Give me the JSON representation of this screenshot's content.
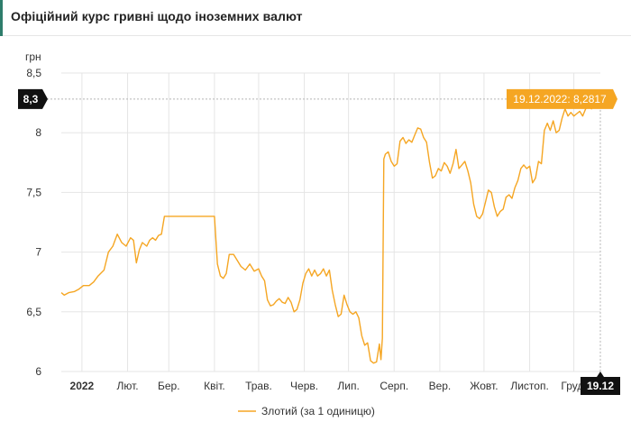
{
  "header": {
    "title": "Офіційний курс гривні щодо іноземних валют"
  },
  "chart_data": {
    "type": "line",
    "ylabel": "грн",
    "ylim": [
      6,
      8.5
    ],
    "y_ticks": [
      "8,5",
      "8",
      "7,5",
      "7",
      "6,5",
      "6"
    ],
    "y_tick_values": [
      8.5,
      8,
      7.5,
      7,
      6.5,
      6
    ],
    "x_ticks": [
      "2022",
      "Лют.",
      "Бер.",
      "Квіт.",
      "Трав.",
      "Черв.",
      "Лип.",
      "Серп.",
      "Вер.",
      "Жовт.",
      "Листоп.",
      "Груд."
    ],
    "x_tick_dates": [
      "2022-01-01",
      "2022-02-01",
      "2022-03-01",
      "2022-04-01",
      "2022-05-01",
      "2022-06-01",
      "2022-07-01",
      "2022-08-01",
      "2022-09-01",
      "2022-10-01",
      "2022-11-01",
      "2022-12-01"
    ],
    "x_range": [
      "2021-12-18",
      "2022-12-19"
    ],
    "grid": true,
    "legend": {
      "position": "bottom",
      "label": "Злотий (за 1 одиницю)"
    },
    "line_color": "#f5a623",
    "tooltip": {
      "label": "19.12.2022: 8,2817",
      "date": "2022-12-19",
      "value": 8.2817
    },
    "y_marker": {
      "label": "8,3",
      "value": 8.2817
    },
    "x_marker": {
      "label": "19.12",
      "date": "2022-12-19"
    },
    "series": [
      {
        "name": "Злотий (за 1 одиницю)",
        "points": [
          [
            "2021-12-18",
            6.66
          ],
          [
            "2021-12-20",
            6.64
          ],
          [
            "2021-12-23",
            6.66
          ],
          [
            "2021-12-27",
            6.67
          ],
          [
            "2021-12-30",
            6.69
          ],
          [
            "2022-01-02",
            6.72
          ],
          [
            "2022-01-06",
            6.72
          ],
          [
            "2022-01-09",
            6.75
          ],
          [
            "2022-01-12",
            6.8
          ],
          [
            "2022-01-16",
            6.85
          ],
          [
            "2022-01-19",
            7.0
          ],
          [
            "2022-01-22",
            7.05
          ],
          [
            "2022-01-25",
            7.15
          ],
          [
            "2022-01-28",
            7.08
          ],
          [
            "2022-01-31",
            7.05
          ],
          [
            "2022-02-03",
            7.12
          ],
          [
            "2022-02-05",
            7.1
          ],
          [
            "2022-02-07",
            6.91
          ],
          [
            "2022-02-09",
            7.02
          ],
          [
            "2022-02-11",
            7.08
          ],
          [
            "2022-02-14",
            7.05
          ],
          [
            "2022-02-16",
            7.1
          ],
          [
            "2022-02-18",
            7.12
          ],
          [
            "2022-02-20",
            7.1
          ],
          [
            "2022-02-22",
            7.14
          ],
          [
            "2022-02-24",
            7.15
          ],
          [
            "2022-02-26",
            7.3
          ],
          [
            "2022-03-01",
            7.3
          ],
          [
            "2022-03-30",
            7.3
          ],
          [
            "2022-04-01",
            7.3
          ],
          [
            "2022-04-03",
            6.9
          ],
          [
            "2022-04-05",
            6.8
          ],
          [
            "2022-04-07",
            6.78
          ],
          [
            "2022-04-09",
            6.82
          ],
          [
            "2022-04-11",
            6.98
          ],
          [
            "2022-04-14",
            6.98
          ],
          [
            "2022-04-17",
            6.92
          ],
          [
            "2022-04-19",
            6.88
          ],
          [
            "2022-04-22",
            6.85
          ],
          [
            "2022-04-25",
            6.9
          ],
          [
            "2022-04-28",
            6.84
          ],
          [
            "2022-05-01",
            6.86
          ],
          [
            "2022-05-03",
            6.8
          ],
          [
            "2022-05-05",
            6.76
          ],
          [
            "2022-05-07",
            6.6
          ],
          [
            "2022-05-09",
            6.55
          ],
          [
            "2022-05-11",
            6.56
          ],
          [
            "2022-05-13",
            6.59
          ],
          [
            "2022-05-15",
            6.61
          ],
          [
            "2022-05-17",
            6.58
          ],
          [
            "2022-05-19",
            6.57
          ],
          [
            "2022-05-21",
            6.62
          ],
          [
            "2022-05-23",
            6.58
          ],
          [
            "2022-05-25",
            6.5
          ],
          [
            "2022-05-27",
            6.52
          ],
          [
            "2022-05-29",
            6.6
          ],
          [
            "2022-05-31",
            6.74
          ],
          [
            "2022-06-02",
            6.82
          ],
          [
            "2022-06-04",
            6.86
          ],
          [
            "2022-06-06",
            6.8
          ],
          [
            "2022-06-08",
            6.85
          ],
          [
            "2022-06-10",
            6.8
          ],
          [
            "2022-06-12",
            6.82
          ],
          [
            "2022-06-14",
            6.86
          ],
          [
            "2022-06-16",
            6.8
          ],
          [
            "2022-06-18",
            6.85
          ],
          [
            "2022-06-20",
            6.68
          ],
          [
            "2022-06-22",
            6.56
          ],
          [
            "2022-06-24",
            6.46
          ],
          [
            "2022-06-26",
            6.48
          ],
          [
            "2022-06-28",
            6.64
          ],
          [
            "2022-06-30",
            6.56
          ],
          [
            "2022-07-02",
            6.5
          ],
          [
            "2022-07-04",
            6.48
          ],
          [
            "2022-07-06",
            6.5
          ],
          [
            "2022-07-08",
            6.45
          ],
          [
            "2022-07-10",
            6.3
          ],
          [
            "2022-07-12",
            6.22
          ],
          [
            "2022-07-14",
            6.24
          ],
          [
            "2022-07-16",
            6.09
          ],
          [
            "2022-07-18",
            6.07
          ],
          [
            "2022-07-20",
            6.08
          ],
          [
            "2022-07-22",
            6.23
          ],
          [
            "2022-07-23",
            6.1
          ],
          [
            "2022-07-24",
            6.28
          ],
          [
            "2022-07-25",
            7.78
          ],
          [
            "2022-07-26",
            7.82
          ],
          [
            "2022-07-28",
            7.84
          ],
          [
            "2022-07-30",
            7.76
          ],
          [
            "2022-08-01",
            7.72
          ],
          [
            "2022-08-03",
            7.74
          ],
          [
            "2022-08-05",
            7.93
          ],
          [
            "2022-08-07",
            7.96
          ],
          [
            "2022-08-09",
            7.91
          ],
          [
            "2022-08-11",
            7.94
          ],
          [
            "2022-08-13",
            7.92
          ],
          [
            "2022-08-15",
            7.98
          ],
          [
            "2022-08-17",
            8.04
          ],
          [
            "2022-08-19",
            8.03
          ],
          [
            "2022-08-21",
            7.96
          ],
          [
            "2022-08-23",
            7.92
          ],
          [
            "2022-08-25",
            7.75
          ],
          [
            "2022-08-27",
            7.62
          ],
          [
            "2022-08-29",
            7.64
          ],
          [
            "2022-08-31",
            7.7
          ],
          [
            "2022-09-02",
            7.68
          ],
          [
            "2022-09-04",
            7.75
          ],
          [
            "2022-09-06",
            7.72
          ],
          [
            "2022-09-08",
            7.66
          ],
          [
            "2022-09-10",
            7.74
          ],
          [
            "2022-09-12",
            7.86
          ],
          [
            "2022-09-14",
            7.7
          ],
          [
            "2022-09-16",
            7.73
          ],
          [
            "2022-09-18",
            7.76
          ],
          [
            "2022-09-20",
            7.68
          ],
          [
            "2022-09-22",
            7.58
          ],
          [
            "2022-09-24",
            7.4
          ],
          [
            "2022-09-26",
            7.3
          ],
          [
            "2022-09-28",
            7.28
          ],
          [
            "2022-09-30",
            7.32
          ],
          [
            "2022-10-02",
            7.42
          ],
          [
            "2022-10-04",
            7.52
          ],
          [
            "2022-10-06",
            7.5
          ],
          [
            "2022-10-08",
            7.38
          ],
          [
            "2022-10-10",
            7.3
          ],
          [
            "2022-10-12",
            7.34
          ],
          [
            "2022-10-14",
            7.36
          ],
          [
            "2022-10-16",
            7.46
          ],
          [
            "2022-10-18",
            7.48
          ],
          [
            "2022-10-20",
            7.45
          ],
          [
            "2022-10-22",
            7.54
          ],
          [
            "2022-10-24",
            7.6
          ],
          [
            "2022-10-26",
            7.7
          ],
          [
            "2022-10-28",
            7.73
          ],
          [
            "2022-10-30",
            7.7
          ],
          [
            "2022-11-01",
            7.72
          ],
          [
            "2022-11-03",
            7.58
          ],
          [
            "2022-11-05",
            7.62
          ],
          [
            "2022-11-07",
            7.76
          ],
          [
            "2022-11-09",
            7.74
          ],
          [
            "2022-11-11",
            8.02
          ],
          [
            "2022-11-13",
            8.08
          ],
          [
            "2022-11-15",
            8.02
          ],
          [
            "2022-11-17",
            8.1
          ],
          [
            "2022-11-19",
            8.0
          ],
          [
            "2022-11-21",
            8.02
          ],
          [
            "2022-11-23",
            8.12
          ],
          [
            "2022-11-25",
            8.2
          ],
          [
            "2022-11-27",
            8.14
          ],
          [
            "2022-11-29",
            8.17
          ],
          [
            "2022-12-01",
            8.14
          ],
          [
            "2022-12-03",
            8.16
          ],
          [
            "2022-12-05",
            8.18
          ],
          [
            "2022-12-07",
            8.14
          ],
          [
            "2022-12-09",
            8.2
          ],
          [
            "2022-12-11",
            8.22
          ],
          [
            "2022-12-13",
            8.2
          ],
          [
            "2022-12-15",
            8.25
          ],
          [
            "2022-12-17",
            8.27
          ],
          [
            "2022-12-19",
            8.2817
          ]
        ]
      }
    ]
  }
}
